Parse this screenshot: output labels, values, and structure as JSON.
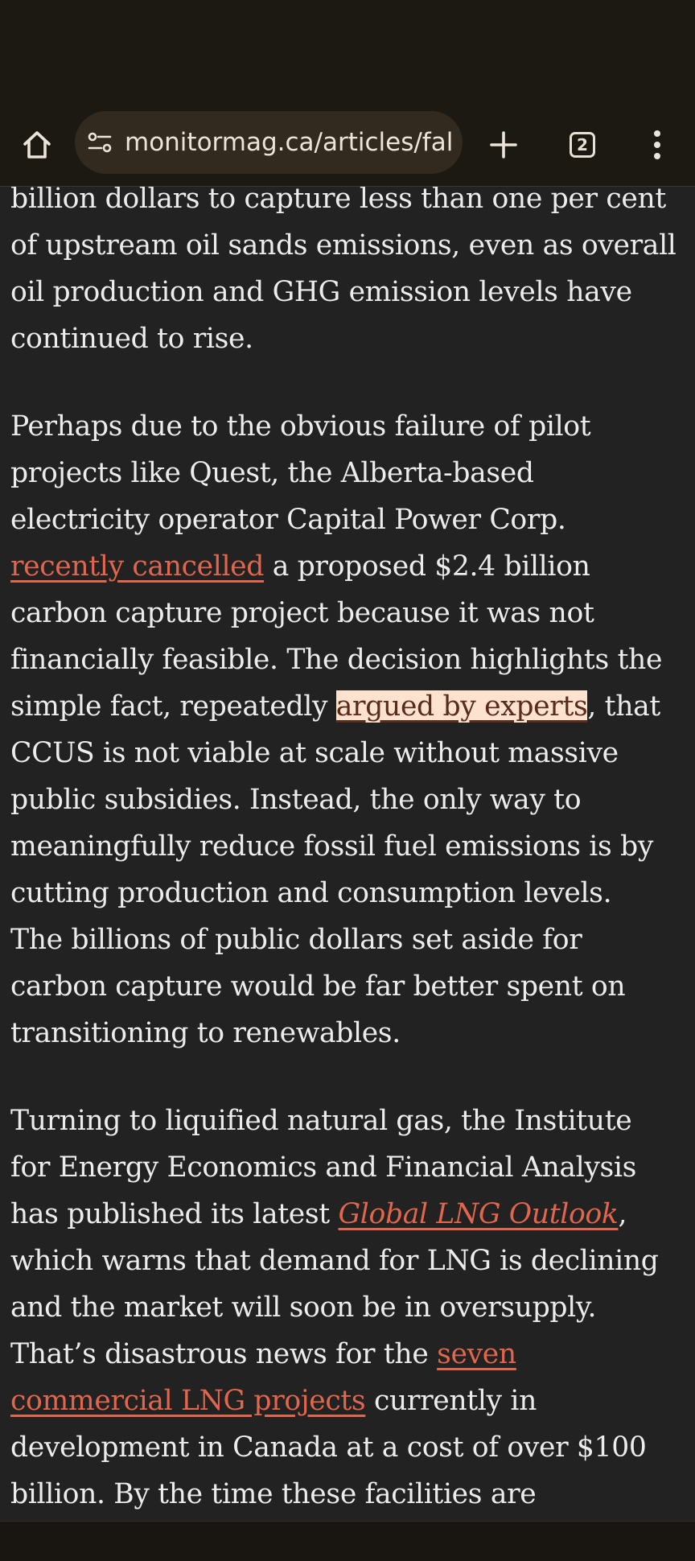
{
  "browser": {
    "url": "monitormag.ca/articles/fal",
    "tab_count": "2",
    "icons": [
      "home-icon",
      "site-info-icon",
      "new-tab-icon",
      "tab-switcher-icon",
      "more-menu-icon"
    ]
  },
  "article": {
    "p1": {
      "l1": "billion dollars to capture less than one per cent",
      "l2": "of upstream oil sands emissions, even as overall",
      "l3": "oil production and GHG emission levels have",
      "l4": "continued to rise."
    },
    "p2": {
      "l1": "Perhaps due to the obvious failure of pilot",
      "l2": "projects like Quest, the Alberta-based",
      "l3": "electricity operator Capital Power Corp.",
      "link_cancelled": "recently cancelled",
      "l4_rest": " a proposed $2.4 billion",
      "l5": "carbon capture project because it was not",
      "l6": "financially feasible. The decision highlights the",
      "l7_pre": "simple fact, repeatedly ",
      "link_experts": "argued by experts",
      "l7_post": ", that",
      "l8": "CCUS is not viable at scale without massive",
      "l9": "public subsidies. Instead, the only way to",
      "l10": "meaningfully reduce fossil fuel emissions is by",
      "l11": "cutting production and consumption levels.",
      "l12": "The billions of public dollars set aside for",
      "l13": "carbon capture would be far better spent on",
      "l14": "transitioning to renewables."
    },
    "p3": {
      "l1": "Turning to liquified natural gas, the Institute",
      "l2": "for Energy Economics and Financial Analysis",
      "l3_pre": "has published its latest ",
      "link_lng": "Global LNG Outlook",
      "l3_post": ",",
      "l4": "which warns that demand for LNG is declining",
      "l5": "and the market will soon be in oversupply.",
      "l6_pre": "That’s disastrous news for the ",
      "link_seven_a": "seven",
      "link_seven_b": "commercial LNG projects",
      "l7_post": " currently in",
      "l8": "development in Canada at a cost of over $100",
      "l9": "billion. By the time these facilities are"
    }
  }
}
